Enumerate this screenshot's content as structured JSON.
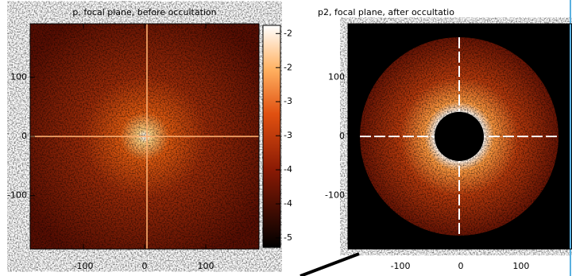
{
  "chart_data": [
    {
      "type": "image",
      "title": "p, focal plane, before occultation",
      "xlim": [
        -187,
        187
      ],
      "ylim": [
        -190,
        190
      ],
      "xticks": [
        -100,
        0,
        100
      ],
      "yticks": [
        -100,
        0,
        100
      ],
      "clim": [
        -5.14,
        -1.88
      ],
      "cticks": [
        {
          "value": -2,
          "label": "-2"
        },
        {
          "value": -2.5,
          "label": "-2"
        },
        {
          "value": -3,
          "label": "-3"
        },
        {
          "value": -3.5,
          "label": "-3"
        },
        {
          "value": -4,
          "label": "-4"
        },
        {
          "value": -4.5,
          "label": "-4"
        },
        {
          "value": -5,
          "label": "-5"
        }
      ]
    },
    {
      "type": "image",
      "title": "p2, focal plane, after occultatio",
      "xlim": [
        -187,
        187
      ],
      "ylim": [
        -190,
        190
      ],
      "xticks": [
        -100,
        0,
        100
      ],
      "yticks": [
        -100,
        0,
        100
      ]
    }
  ]
}
